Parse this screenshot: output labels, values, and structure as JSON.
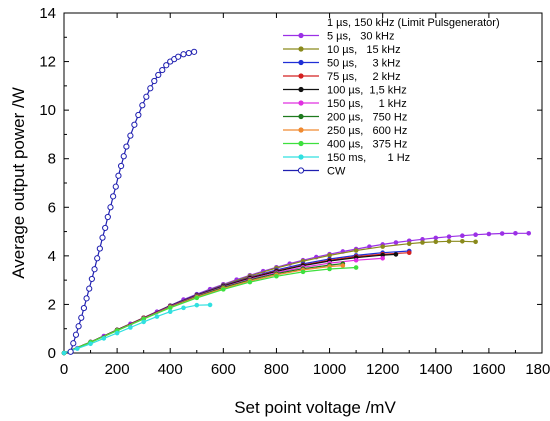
{
  "chart_data": {
    "type": "line",
    "title": "",
    "xlabel": "Set point voltage /mV",
    "ylabel": "Average output power /W",
    "xlim": [
      0,
      1800
    ],
    "ylim": [
      0,
      14
    ],
    "xticks": [
      0,
      200,
      400,
      600,
      800,
      1000,
      1200,
      1400,
      1600,
      1800
    ],
    "yticks": [
      0,
      2,
      4,
      6,
      8,
      10,
      12,
      14
    ],
    "grid": false,
    "legend_position": "top-right",
    "legend_header": "1 µs, 150 kHz (Limit Pulsgenerator)",
    "series": [
      {
        "name": "5 µs,   30 kHz",
        "color": "#9b30e6",
        "marker": "filled",
        "points": [
          [
            0,
            0
          ],
          [
            50,
            0.2
          ],
          [
            100,
            0.45
          ],
          [
            150,
            0.7
          ],
          [
            200,
            0.95
          ],
          [
            250,
            1.2
          ],
          [
            300,
            1.45
          ],
          [
            350,
            1.7
          ],
          [
            400,
            1.95
          ],
          [
            450,
            2.2
          ],
          [
            500,
            2.42
          ],
          [
            550,
            2.63
          ],
          [
            600,
            2.83
          ],
          [
            650,
            3.02
          ],
          [
            700,
            3.2
          ],
          [
            750,
            3.37
          ],
          [
            800,
            3.53
          ],
          [
            850,
            3.68
          ],
          [
            900,
            3.82
          ],
          [
            950,
            3.95
          ],
          [
            1000,
            4.07
          ],
          [
            1050,
            4.18
          ],
          [
            1100,
            4.28
          ],
          [
            1150,
            4.38
          ],
          [
            1200,
            4.47
          ],
          [
            1250,
            4.55
          ],
          [
            1300,
            4.62
          ],
          [
            1350,
            4.68
          ],
          [
            1400,
            4.74
          ],
          [
            1450,
            4.79
          ],
          [
            1500,
            4.83
          ],
          [
            1550,
            4.87
          ],
          [
            1600,
            4.9
          ],
          [
            1650,
            4.92
          ],
          [
            1700,
            4.93
          ],
          [
            1750,
            4.93
          ]
        ]
      },
      {
        "name": "10 µs,   15 kHz",
        "color": "#8a8a1c",
        "marker": "filled",
        "points": [
          [
            0,
            0
          ],
          [
            100,
            0.45
          ],
          [
            200,
            0.95
          ],
          [
            300,
            1.45
          ],
          [
            400,
            1.95
          ],
          [
            500,
            2.4
          ],
          [
            600,
            2.8
          ],
          [
            700,
            3.17
          ],
          [
            800,
            3.5
          ],
          [
            900,
            3.78
          ],
          [
            1000,
            4.02
          ],
          [
            1100,
            4.22
          ],
          [
            1200,
            4.38
          ],
          [
            1300,
            4.5
          ],
          [
            1350,
            4.55
          ],
          [
            1400,
            4.58
          ],
          [
            1450,
            4.6
          ],
          [
            1500,
            4.6
          ],
          [
            1550,
            4.58
          ]
        ]
      },
      {
        "name": "50 µs,     3 kHz",
        "color": "#1f2fd6",
        "marker": "filled",
        "points": [
          [
            0,
            0
          ],
          [
            100,
            0.45
          ],
          [
            200,
            0.95
          ],
          [
            300,
            1.45
          ],
          [
            400,
            1.95
          ],
          [
            500,
            2.4
          ],
          [
            600,
            2.78
          ],
          [
            700,
            3.12
          ],
          [
            800,
            3.42
          ],
          [
            900,
            3.67
          ],
          [
            1000,
            3.87
          ],
          [
            1100,
            4.02
          ],
          [
            1200,
            4.13
          ],
          [
            1300,
            4.2
          ]
        ]
      },
      {
        "name": "75 µs,     2 kHz",
        "color": "#d42020",
        "marker": "filled",
        "points": [
          [
            0,
            0
          ],
          [
            100,
            0.45
          ],
          [
            200,
            0.95
          ],
          [
            300,
            1.45
          ],
          [
            400,
            1.94
          ],
          [
            500,
            2.38
          ],
          [
            600,
            2.76
          ],
          [
            700,
            3.1
          ],
          [
            800,
            3.38
          ],
          [
            900,
            3.62
          ],
          [
            1000,
            3.82
          ],
          [
            1100,
            3.97
          ],
          [
            1200,
            4.07
          ],
          [
            1300,
            4.13
          ]
        ]
      },
      {
        "name": "100 µs,  1,5 kHz",
        "color": "#111111",
        "marker": "filled",
        "points": [
          [
            0,
            0
          ],
          [
            100,
            0.45
          ],
          [
            200,
            0.95
          ],
          [
            300,
            1.44
          ],
          [
            400,
            1.93
          ],
          [
            500,
            2.37
          ],
          [
            600,
            2.75
          ],
          [
            700,
            3.08
          ],
          [
            800,
            3.36
          ],
          [
            900,
            3.6
          ],
          [
            1000,
            3.79
          ],
          [
            1100,
            3.93
          ],
          [
            1200,
            4.03
          ],
          [
            1250,
            4.06
          ]
        ]
      },
      {
        "name": "150 µs,     1 kHz",
        "color": "#e030e0",
        "marker": "filled",
        "points": [
          [
            0,
            0
          ],
          [
            100,
            0.45
          ],
          [
            200,
            0.94
          ],
          [
            300,
            1.43
          ],
          [
            400,
            1.92
          ],
          [
            500,
            2.35
          ],
          [
            600,
            2.72
          ],
          [
            700,
            3.04
          ],
          [
            800,
            3.31
          ],
          [
            900,
            3.53
          ],
          [
            1000,
            3.7
          ],
          [
            1100,
            3.82
          ],
          [
            1200,
            3.9
          ]
        ]
      },
      {
        "name": "200 µs,   750 Hz",
        "color": "#1e7a1e",
        "marker": "filled",
        "points": [
          [
            0,
            0
          ],
          [
            100,
            0.45
          ],
          [
            200,
            0.94
          ],
          [
            300,
            1.42
          ],
          [
            400,
            1.9
          ],
          [
            500,
            2.33
          ],
          [
            600,
            2.7
          ],
          [
            700,
            3.01
          ],
          [
            800,
            3.27
          ],
          [
            900,
            3.47
          ],
          [
            1000,
            3.62
          ],
          [
            1050,
            3.68
          ]
        ]
      },
      {
        "name": "250 µs,   600 Hz",
        "color": "#f08a30",
        "marker": "filled",
        "points": [
          [
            0,
            0
          ],
          [
            100,
            0.44
          ],
          [
            200,
            0.93
          ],
          [
            300,
            1.41
          ],
          [
            400,
            1.88
          ],
          [
            500,
            2.3
          ],
          [
            600,
            2.66
          ],
          [
            700,
            2.97
          ],
          [
            800,
            3.22
          ],
          [
            900,
            3.42
          ],
          [
            1000,
            3.56
          ],
          [
            1050,
            3.6
          ]
        ]
      },
      {
        "name": "400 µs,   375 Hz",
        "color": "#3ee03e",
        "marker": "filled",
        "points": [
          [
            0,
            0
          ],
          [
            100,
            0.44
          ],
          [
            200,
            0.92
          ],
          [
            300,
            1.4
          ],
          [
            400,
            1.86
          ],
          [
            500,
            2.27
          ],
          [
            600,
            2.62
          ],
          [
            700,
            2.92
          ],
          [
            800,
            3.16
          ],
          [
            900,
            3.34
          ],
          [
            1000,
            3.46
          ],
          [
            1100,
            3.52
          ]
        ]
      },
      {
        "name": "150 ms,       1 Hz",
        "color": "#30e0e0",
        "marker": "filled",
        "points": [
          [
            0,
            0
          ],
          [
            50,
            0.18
          ],
          [
            100,
            0.38
          ],
          [
            150,
            0.6
          ],
          [
            200,
            0.82
          ],
          [
            250,
            1.05
          ],
          [
            300,
            1.28
          ],
          [
            350,
            1.5
          ],
          [
            400,
            1.7
          ],
          [
            450,
            1.86
          ],
          [
            500,
            1.97
          ],
          [
            550,
            1.98
          ]
        ]
      },
      {
        "name": "CW",
        "color": "#1f1fb0",
        "marker": "open",
        "points": [
          [
            25,
            0.05
          ],
          [
            35,
            0.4
          ],
          [
            45,
            0.75
          ],
          [
            55,
            1.1
          ],
          [
            65,
            1.45
          ],
          [
            75,
            1.85
          ],
          [
            85,
            2.25
          ],
          [
            95,
            2.65
          ],
          [
            105,
            3.05
          ],
          [
            115,
            3.45
          ],
          [
            125,
            3.9
          ],
          [
            135,
            4.3
          ],
          [
            145,
            4.75
          ],
          [
            155,
            5.15
          ],
          [
            165,
            5.6
          ],
          [
            175,
            6.0
          ],
          [
            185,
            6.45
          ],
          [
            195,
            6.85
          ],
          [
            205,
            7.3
          ],
          [
            215,
            7.7
          ],
          [
            225,
            8.1
          ],
          [
            235,
            8.5
          ],
          [
            250,
            8.95
          ],
          [
            265,
            9.4
          ],
          [
            280,
            9.8
          ],
          [
            295,
            10.2
          ],
          [
            310,
            10.55
          ],
          [
            325,
            10.9
          ],
          [
            340,
            11.2
          ],
          [
            355,
            11.45
          ],
          [
            370,
            11.65
          ],
          [
            385,
            11.85
          ],
          [
            400,
            12.0
          ],
          [
            415,
            12.1
          ],
          [
            430,
            12.2
          ],
          [
            450,
            12.3
          ],
          [
            470,
            12.35
          ],
          [
            490,
            12.4
          ]
        ]
      }
    ]
  }
}
